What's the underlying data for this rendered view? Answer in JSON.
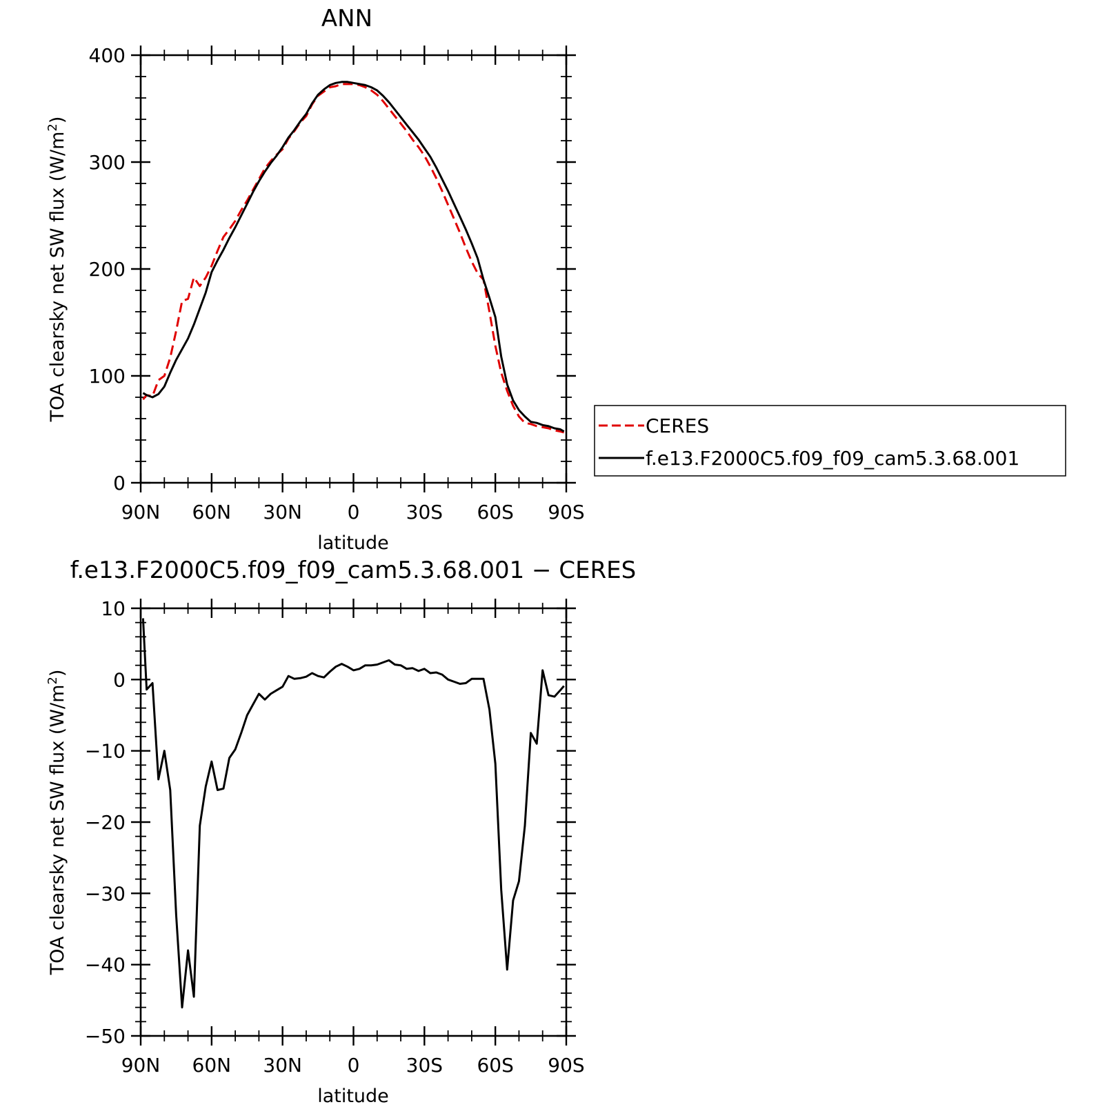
{
  "chart_data": [
    {
      "type": "line",
      "title": "ANN",
      "xlabel": "latitude",
      "ylabel": "TOA clearsky net SW flux (W/m²)",
      "ylabel_main": "TOA clearsky net SW flux (W/m",
      "ylabel_sup": "2",
      "ylabel_end": ")",
      "xlim": [
        90,
        -90
      ],
      "ylim": [
        0,
        400
      ],
      "x_ticks": [
        {
          "value": 90,
          "label": "90N"
        },
        {
          "value": 60,
          "label": "60N"
        },
        {
          "value": 30,
          "label": "30N"
        },
        {
          "value": 0,
          "label": "0"
        },
        {
          "value": -30,
          "label": "30S"
        },
        {
          "value": -60,
          "label": "60S"
        },
        {
          "value": -90,
          "label": "90S"
        }
      ],
      "y_ticks": [
        {
          "value": 0,
          "label": "0"
        },
        {
          "value": 100,
          "label": "100"
        },
        {
          "value": 200,
          "label": "200"
        },
        {
          "value": 300,
          "label": "300"
        },
        {
          "value": 400,
          "label": "400"
        }
      ],
      "legend_position": "right",
      "series": [
        {
          "name": "CERES",
          "color": "#e00000",
          "dash": "dashed",
          "x": [
            89,
            87.5,
            85,
            82.5,
            80,
            77.5,
            75,
            72.5,
            70,
            67.5,
            65,
            62.5,
            60,
            57.5,
            55,
            52.5,
            50,
            47.5,
            45,
            42.5,
            40,
            37.5,
            35,
            32.5,
            30,
            27.5,
            25,
            22.5,
            20,
            17.5,
            15,
            12.5,
            10,
            7.5,
            5,
            2.5,
            0,
            -2.5,
            -5,
            -7.5,
            -10,
            -12.5,
            -15,
            -17.5,
            -20,
            -22.5,
            -25,
            -27.5,
            -30,
            -32.5,
            -35,
            -37.5,
            -40,
            -42.5,
            -45,
            -47.5,
            -50,
            -52.5,
            -55,
            -57.5,
            -60,
            -62.5,
            -65,
            -67.5,
            -70,
            -72.5,
            -75,
            -77.5,
            -80,
            -82.5,
            -85,
            -87.5,
            -89
          ],
          "values": [
            78,
            82,
            81,
            96,
            100,
            117,
            142,
            170,
            172,
            192,
            184,
            192,
            203,
            217,
            230,
            237,
            245,
            255,
            264,
            274,
            284,
            294,
            301,
            307,
            312,
            322,
            329,
            337,
            343,
            354,
            362,
            366,
            370,
            371,
            373,
            373,
            373,
            372,
            370,
            367,
            363,
            357,
            350,
            343,
            336,
            329,
            321,
            314,
            306,
            296,
            285,
            273,
            260,
            247,
            234,
            220,
            207,
            196,
            190,
            160,
            128,
            103,
            86,
            72,
            62,
            56,
            55,
            53,
            52,
            51,
            49,
            48,
            47
          ]
        },
        {
          "name": "f.e13.F2000C5.f09_f09_cam5.3.68.001",
          "color": "#000000",
          "dash": "solid",
          "x": [
            89,
            87.5,
            85,
            82.5,
            80,
            77.5,
            75,
            72.5,
            70,
            67.5,
            65,
            62.5,
            60,
            57.5,
            55,
            52.5,
            50,
            47.5,
            45,
            42.5,
            40,
            37.5,
            35,
            32.5,
            30,
            27.5,
            25,
            22.5,
            20,
            17.5,
            15,
            12.5,
            10,
            7.5,
            5,
            2.5,
            0,
            -2.5,
            -5,
            -7.5,
            -10,
            -12.5,
            -15,
            -17.5,
            -20,
            -22.5,
            -25,
            -27.5,
            -30,
            -32.5,
            -35,
            -37.5,
            -40,
            -42.5,
            -45,
            -47.5,
            -50,
            -52.5,
            -55,
            -57.5,
            -60,
            -62.5,
            -65,
            -67.5,
            -70,
            -72.5,
            -75,
            -77.5,
            -80,
            -82.5,
            -85,
            -87.5,
            -89
          ],
          "values": [
            84,
            82,
            80,
            83,
            90,
            103,
            115,
            125,
            135,
            148,
            163,
            178,
            197,
            208,
            218,
            229,
            239,
            250,
            261,
            272,
            282,
            291,
            299,
            306,
            314,
            323,
            330,
            338,
            345,
            355,
            363,
            368,
            372,
            374,
            375,
            375,
            374,
            373,
            372,
            370,
            367,
            362,
            356,
            349,
            342,
            335,
            328,
            321,
            313,
            305,
            295,
            284,
            273,
            261,
            249,
            237,
            224,
            210,
            190,
            173,
            155,
            118,
            92,
            77,
            68,
            62,
            57,
            56,
            54,
            53,
            51,
            50,
            48
          ]
        }
      ]
    },
    {
      "type": "line",
      "title": "f.e13.F2000C5.f09_f09_cam5.3.68.001 − CERES",
      "xlabel": "latitude",
      "ylabel": "TOA clearsky net SW flux (W/m²)",
      "ylabel_main": "TOA clearsky net SW flux (W/m",
      "ylabel_sup": "2",
      "ylabel_end": ")",
      "xlim": [
        90,
        -90
      ],
      "ylim": [
        -50,
        10
      ],
      "x_ticks": [
        {
          "value": 90,
          "label": "90N"
        },
        {
          "value": 60,
          "label": "60N"
        },
        {
          "value": 30,
          "label": "30N"
        },
        {
          "value": 0,
          "label": "0"
        },
        {
          "value": -30,
          "label": "30S"
        },
        {
          "value": -60,
          "label": "60S"
        },
        {
          "value": -90,
          "label": "90S"
        }
      ],
      "y_ticks": [
        {
          "value": -50,
          "label": "−50"
        },
        {
          "value": -40,
          "label": "−40"
        },
        {
          "value": -30,
          "label": "−30"
        },
        {
          "value": -20,
          "label": "−20"
        },
        {
          "value": -10,
          "label": "−10"
        },
        {
          "value": 0,
          "label": "0"
        },
        {
          "value": 10,
          "label": "10"
        }
      ],
      "series": [
        {
          "color": "#000000",
          "dash": "solid",
          "x": [
            89,
            87.5,
            85,
            82.5,
            80,
            77.5,
            75,
            72.5,
            70,
            67.5,
            65,
            62.5,
            60,
            57.5,
            55,
            52.5,
            50,
            47.5,
            45,
            42.5,
            40,
            37.5,
            35,
            32.5,
            30,
            27.5,
            25,
            22.5,
            20,
            17.5,
            15,
            12.5,
            10,
            7.5,
            5,
            2.5,
            0,
            -2.5,
            -5,
            -7.5,
            -10,
            -12.5,
            -15,
            -17.5,
            -20,
            -22.5,
            -25,
            -27.5,
            -30,
            -32.5,
            -35,
            -37.5,
            -40,
            -42.5,
            -45,
            -47.5,
            -50,
            -52.5,
            -55,
            -57.5,
            -60,
            -62.5,
            -65,
            -67.5,
            -70,
            -72.5,
            -75,
            -77.5,
            -80,
            -82.5,
            -85,
            -87.5,
            -89
          ],
          "values": [
            8.6,
            -1.4,
            -0.5,
            -14,
            -10,
            -15.5,
            -33,
            -46,
            -38,
            -44.5,
            -20.5,
            -15,
            -11.5,
            -15.5,
            -15.3,
            -11,
            -9.8,
            -7.5,
            -5,
            -3.5,
            -2,
            -2.8,
            -2,
            -1.5,
            -1,
            0.5,
            0.1,
            0.2,
            0.4,
            0.9,
            0.5,
            0.3,
            1.1,
            1.8,
            2.2,
            1.8,
            1.3,
            1.5,
            2.0,
            2.0,
            2.1,
            2.4,
            2.7,
            2.1,
            2.0,
            1.5,
            1.6,
            1.2,
            1.5,
            0.9,
            1.0,
            0.7,
            0.0,
            -0.3,
            -0.6,
            -0.5,
            0.1,
            0.1,
            0.1,
            -4.2,
            -11.8,
            -29.5,
            -40.7,
            -31,
            -28.3,
            -20.5,
            -7.5,
            -9,
            1.3,
            -2.2,
            -2.4,
            -1.5,
            -0.9
          ]
        }
      ]
    }
  ]
}
